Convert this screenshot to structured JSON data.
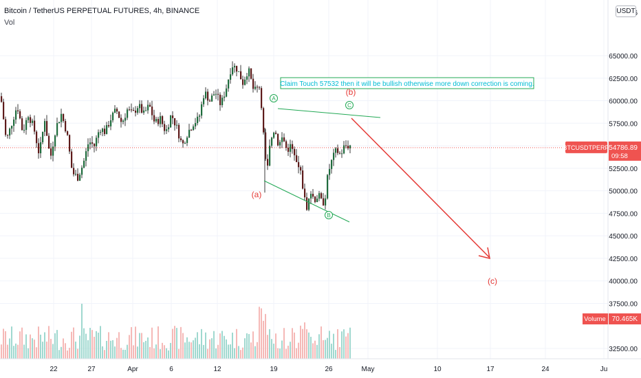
{
  "header": {
    "symbol_line": "Bitcoin / TetherUS PERPETUAL FUTURES, 4h, BINANCE",
    "indicator": "Vol",
    "currency_button": "USDT"
  },
  "colors": {
    "up": "#26a69a",
    "down": "#ef5350",
    "candle_body": "#5d1a1a",
    "candle_up_body": "#1e6b3c",
    "grid": "#f0f3fa",
    "axis_text": "#131722",
    "price_line": "#ef5350",
    "annotation_green": "#21a854",
    "annotation_red": "#e53935",
    "note_text": "#00bcd4"
  },
  "chart_data": {
    "type": "candlestick",
    "title": "Bitcoin / TetherUS PERPETUAL FUTURES, 4h, BINANCE",
    "ylim": [
      30000,
      67000
    ],
    "x_tick_labels": [
      "22",
      "27",
      "Apr",
      "6",
      "12",
      "19",
      "26",
      "May",
      "10",
      "17",
      "24",
      "Ju"
    ],
    "y_tick_labels": [
      "65000.00",
      "62500.00",
      "60000.00",
      "57500.00",
      "55000.00",
      "52500.00",
      "50000.00",
      "47500.00",
      "45000.00",
      "42500.00",
      "40000.00",
      "37500.00",
      "32500.00"
    ],
    "y_top_partial": "6",
    "last_price_label": "BTCUSDTPERP",
    "last_price": "54786.89",
    "countdown": "09:58",
    "volume_label": "Volume",
    "volume_value": "70.465K",
    "price_anchors": [
      [
        0,
        60500
      ],
      [
        8,
        55500
      ],
      [
        16,
        57500
      ],
      [
        24,
        59500
      ],
      [
        32,
        56500
      ],
      [
        40,
        58500
      ],
      [
        48,
        57000
      ],
      [
        56,
        54000
      ],
      [
        64,
        58000
      ],
      [
        72,
        53500
      ],
      [
        80,
        57000
      ],
      [
        88,
        58500
      ],
      [
        96,
        56500
      ],
      [
        104,
        52000
      ],
      [
        112,
        51500
      ],
      [
        120,
        53000
      ],
      [
        128,
        55500
      ],
      [
        136,
        55000
      ],
      [
        144,
        57000
      ],
      [
        152,
        56500
      ],
      [
        160,
        58000
      ],
      [
        168,
        59000
      ],
      [
        176,
        57500
      ],
      [
        184,
        59000
      ],
      [
        192,
        58500
      ],
      [
        200,
        59500
      ],
      [
        208,
        58500
      ],
      [
        216,
        59500
      ],
      [
        224,
        57500
      ],
      [
        232,
        58000
      ],
      [
        240,
        56500
      ],
      [
        248,
        58500
      ],
      [
        256,
        57000
      ],
      [
        264,
        55000
      ],
      [
        272,
        56500
      ],
      [
        280,
        57500
      ],
      [
        288,
        58000
      ],
      [
        296,
        61000
      ],
      [
        304,
        60000
      ],
      [
        312,
        61000
      ],
      [
        320,
        59500
      ],
      [
        328,
        61500
      ],
      [
        336,
        64000
      ],
      [
        344,
        63500
      ],
      [
        352,
        62000
      ],
      [
        360,
        63500
      ],
      [
        368,
        61000
      ],
      [
        376,
        61500
      ],
      [
        380,
        59000
      ],
      [
        384,
        53500
      ],
      [
        388,
        52500
      ],
      [
        392,
        55500
      ],
      [
        398,
        57000
      ],
      [
        404,
        55000
      ],
      [
        410,
        56000
      ],
      [
        416,
        54500
      ],
      [
        422,
        55000
      ],
      [
        430,
        53000
      ],
      [
        436,
        52000
      ],
      [
        442,
        49000
      ],
      [
        446,
        48000
      ],
      [
        450,
        50000
      ],
      [
        456,
        49000
      ],
      [
        462,
        49500
      ],
      [
        468,
        48500
      ],
      [
        472,
        49500
      ],
      [
        476,
        52000
      ],
      [
        482,
        53500
      ],
      [
        488,
        54500
      ],
      [
        494,
        54000
      ],
      [
        500,
        55000
      ],
      [
        508,
        55000
      ]
    ],
    "annotations": {
      "note": "Claim Touch 57532 then it will be bullish otherwise more down correction is coming.",
      "wave_a": "(a)",
      "wave_b": "(b)",
      "wave_c": "(c)",
      "circle_a": "A",
      "circle_b": "B",
      "circle_c": "C"
    },
    "grid": true
  }
}
